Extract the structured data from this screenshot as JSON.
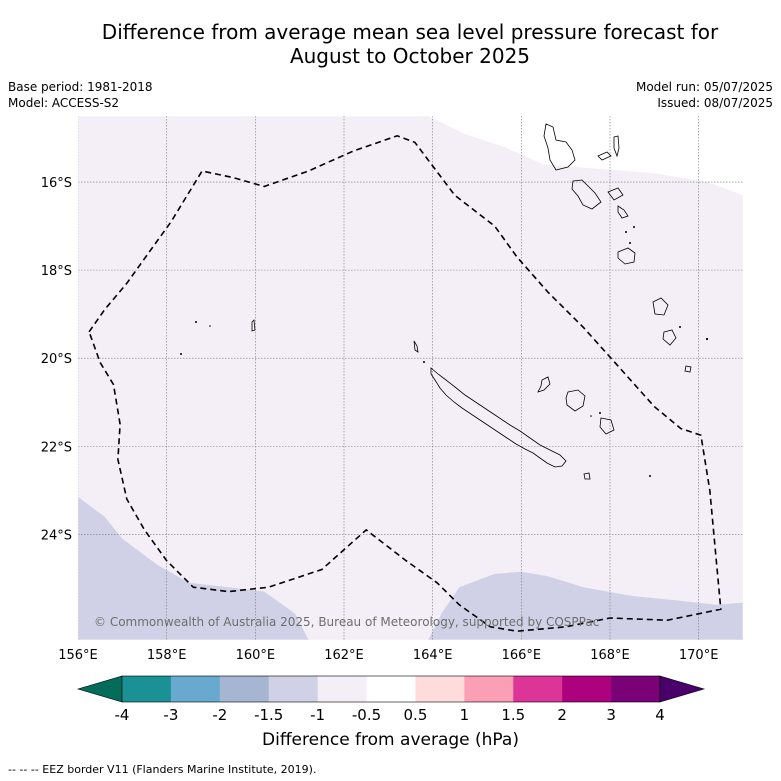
{
  "title": {
    "line1": "Difference from average mean sea level pressure forecast for",
    "line2": "August to October 2025"
  },
  "meta": {
    "base_period": "Base period: 1981-2018",
    "model": "Model: ACCESS-S2",
    "model_run": "Model run: 05/07/2025",
    "issued": "Issued: 08/07/2025"
  },
  "map": {
    "lon_range": [
      156,
      171
    ],
    "lat_range": [
      -26.4,
      -14.5
    ],
    "lon_ticks": [
      {
        "v": 156,
        "label": "156°E"
      },
      {
        "v": 158,
        "label": "158°E"
      },
      {
        "v": 160,
        "label": "160°E"
      },
      {
        "v": 162,
        "label": "162°E"
      },
      {
        "v": 164,
        "label": "164°E"
      },
      {
        "v": 166,
        "label": "166°E"
      },
      {
        "v": 168,
        "label": "168°E"
      },
      {
        "v": 170,
        "label": "170°E"
      }
    ],
    "lat_ticks": [
      {
        "v": -16,
        "label": "16°S"
      },
      {
        "v": -18,
        "label": "18°S"
      },
      {
        "v": -20,
        "label": "20°S"
      },
      {
        "v": -22,
        "label": "22°S"
      },
      {
        "v": -24,
        "label": "24°S"
      }
    ],
    "copyright": "© Commonwealth of Australia 2025, Bureau of Meteorology, supported by COSPPac",
    "colors": {
      "light_band": "#f4eef6",
      "neg_band": "#d0d1e6"
    },
    "eez": [
      [
        156.25,
        -19.4
      ],
      [
        156.6,
        -18.9
      ],
      [
        157.1,
        -18.3
      ],
      [
        157.6,
        -17.6
      ],
      [
        158.1,
        -16.9
      ],
      [
        158.8,
        -15.75
      ],
      [
        159.5,
        -15.9
      ],
      [
        160.2,
        -16.1
      ],
      [
        161.2,
        -15.75
      ],
      [
        162.2,
        -15.3
      ],
      [
        163.2,
        -14.95
      ],
      [
        163.6,
        -15.1
      ],
      [
        164.5,
        -16.3
      ],
      [
        165.4,
        -17
      ],
      [
        165.9,
        -17.7
      ],
      [
        166.6,
        -18.5
      ],
      [
        167.4,
        -19.3
      ],
      [
        168.2,
        -20.2
      ],
      [
        169,
        -21.1
      ],
      [
        169.6,
        -21.6
      ],
      [
        170.05,
        -21.75
      ],
      [
        170.25,
        -23
      ],
      [
        170.5,
        -25.7
      ],
      [
        169.3,
        -25.95
      ],
      [
        168,
        -25.9
      ],
      [
        167,
        -26.1
      ],
      [
        165.9,
        -26.2
      ],
      [
        165.3,
        -26.1
      ],
      [
        164.6,
        -25.6
      ],
      [
        164.1,
        -25.1
      ],
      [
        163.4,
        -24.6
      ],
      [
        162.5,
        -23.9
      ],
      [
        161.5,
        -24.8
      ],
      [
        160.3,
        -25.2
      ],
      [
        159.4,
        -25.3
      ],
      [
        158.6,
        -25.2
      ],
      [
        158,
        -24.6
      ],
      [
        157.5,
        -23.9
      ],
      [
        157.1,
        -23.2
      ],
      [
        156.9,
        -22.3
      ],
      [
        156.95,
        -21.5
      ],
      [
        156.8,
        -20.6
      ],
      [
        156.5,
        -20.1
      ],
      [
        156.25,
        -19.4
      ]
    ],
    "neg_region_sw": [
      [
        156,
        -23.15
      ],
      [
        156.6,
        -23.6
      ],
      [
        157,
        -24.1
      ],
      [
        157.8,
        -24.7
      ],
      [
        158.5,
        -25.1
      ],
      [
        159.4,
        -25.2
      ],
      [
        160.2,
        -25.3
      ],
      [
        160.9,
        -25.8
      ],
      [
        161.2,
        -26.4
      ],
      [
        156,
        -26.4
      ]
    ],
    "neg_region_se": [
      [
        163.9,
        -26.4
      ],
      [
        164.2,
        -25.8
      ],
      [
        164.6,
        -25.2
      ],
      [
        165.4,
        -24.9
      ],
      [
        166,
        -24.85
      ],
      [
        166.6,
        -24.95
      ],
      [
        167.4,
        -25.2
      ],
      [
        168.5,
        -25.4
      ],
      [
        169.5,
        -25.5
      ],
      [
        170.4,
        -25.6
      ],
      [
        171,
        -25.55
      ],
      [
        171,
        -26.4
      ]
    ],
    "light_boundary": [
      [
        163.9,
        -14.5
      ],
      [
        164.7,
        -14.9
      ],
      [
        165.6,
        -15.2
      ],
      [
        166.5,
        -15.6
      ],
      [
        167.7,
        -15.7
      ],
      [
        169,
        -15.8
      ],
      [
        170.2,
        -16
      ],
      [
        171,
        -16.3
      ]
    ]
  },
  "colorbar": {
    "title": "Difference from average (hPa)",
    "labels": [
      "-4",
      "-3",
      "-2",
      "-1.5",
      "-1",
      "-0.5",
      "0.5",
      "1",
      "1.5",
      "2",
      "3",
      "4"
    ],
    "colors": [
      "#1a9194",
      "#67a9cf",
      "#a6b5d1",
      "#d0d1e6",
      "#f4eef6",
      "#ffffff",
      "#fedcdc",
      "#fa9fb5",
      "#dd3497",
      "#ae017e",
      "#7a0177"
    ],
    "under_color": "#016c59",
    "over_color": "#49006a"
  },
  "footnote": "-- -- -- EEZ border V11 (Flanders Marine Institute, 2019)."
}
